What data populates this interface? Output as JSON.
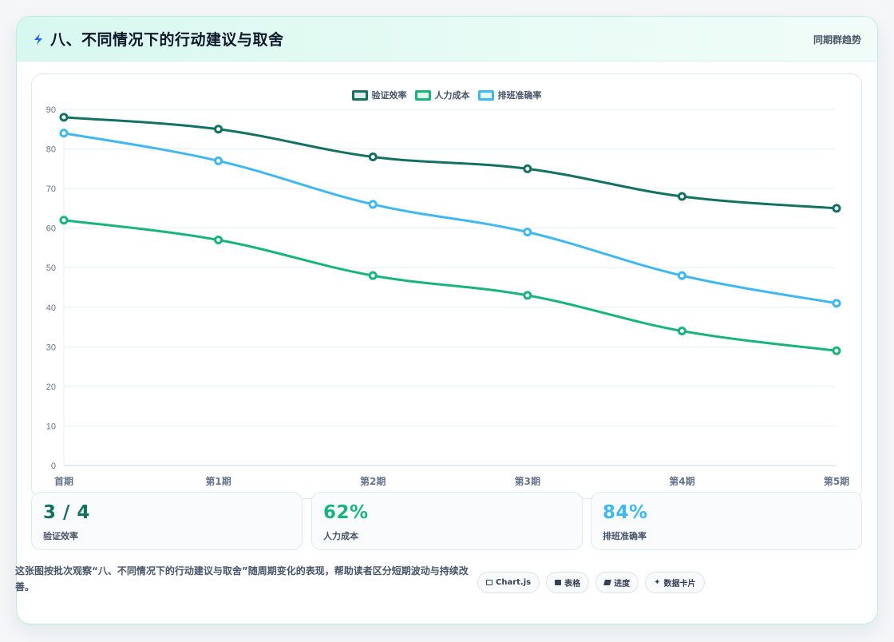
{
  "header": {
    "title": "八、不同情况下的行动建议与取舍",
    "tag": "同期群趋势",
    "accent": "#2563eb"
  },
  "chart_data": {
    "type": "line",
    "categories": [
      "首期",
      "第1期",
      "第2期",
      "第3期",
      "第4期",
      "第5期"
    ],
    "ylim": [
      0,
      90
    ],
    "yticks": [
      0,
      10,
      20,
      30,
      40,
      50,
      60,
      70,
      80,
      90
    ],
    "grid": true,
    "legend": "top",
    "series": [
      {
        "name": "验证效率",
        "color": "#137164",
        "values": [
          88,
          85,
          78,
          75,
          68,
          65
        ]
      },
      {
        "name": "人力成本",
        "color": "#18b47b",
        "values": [
          62,
          57,
          48,
          43,
          34,
          29
        ]
      },
      {
        "name": "排班准确率",
        "color": "#3fb8f0",
        "values": [
          84,
          77,
          66,
          59,
          48,
          41
        ]
      }
    ]
  },
  "kpis": [
    {
      "value": "3 / 4",
      "label": "验证效率",
      "color": "#137164"
    },
    {
      "value": "62%",
      "label": "人力成本",
      "color": "#18b47b"
    },
    {
      "value": "84%",
      "label": "排班准确率",
      "color": "#3fb8f0"
    }
  ],
  "footnote": "这张图按批次观察“八、不同情况下的行动建议与取舍”随周期变化的表现，帮助读者区分短期波动与持续改善。",
  "chips": [
    {
      "label": "Chart.js",
      "icon": "chart-icon"
    },
    {
      "label": "表格",
      "icon": "table-icon"
    },
    {
      "label": "进度",
      "icon": "progress-icon"
    },
    {
      "label": "数据卡片",
      "icon": "star-icon"
    }
  ]
}
